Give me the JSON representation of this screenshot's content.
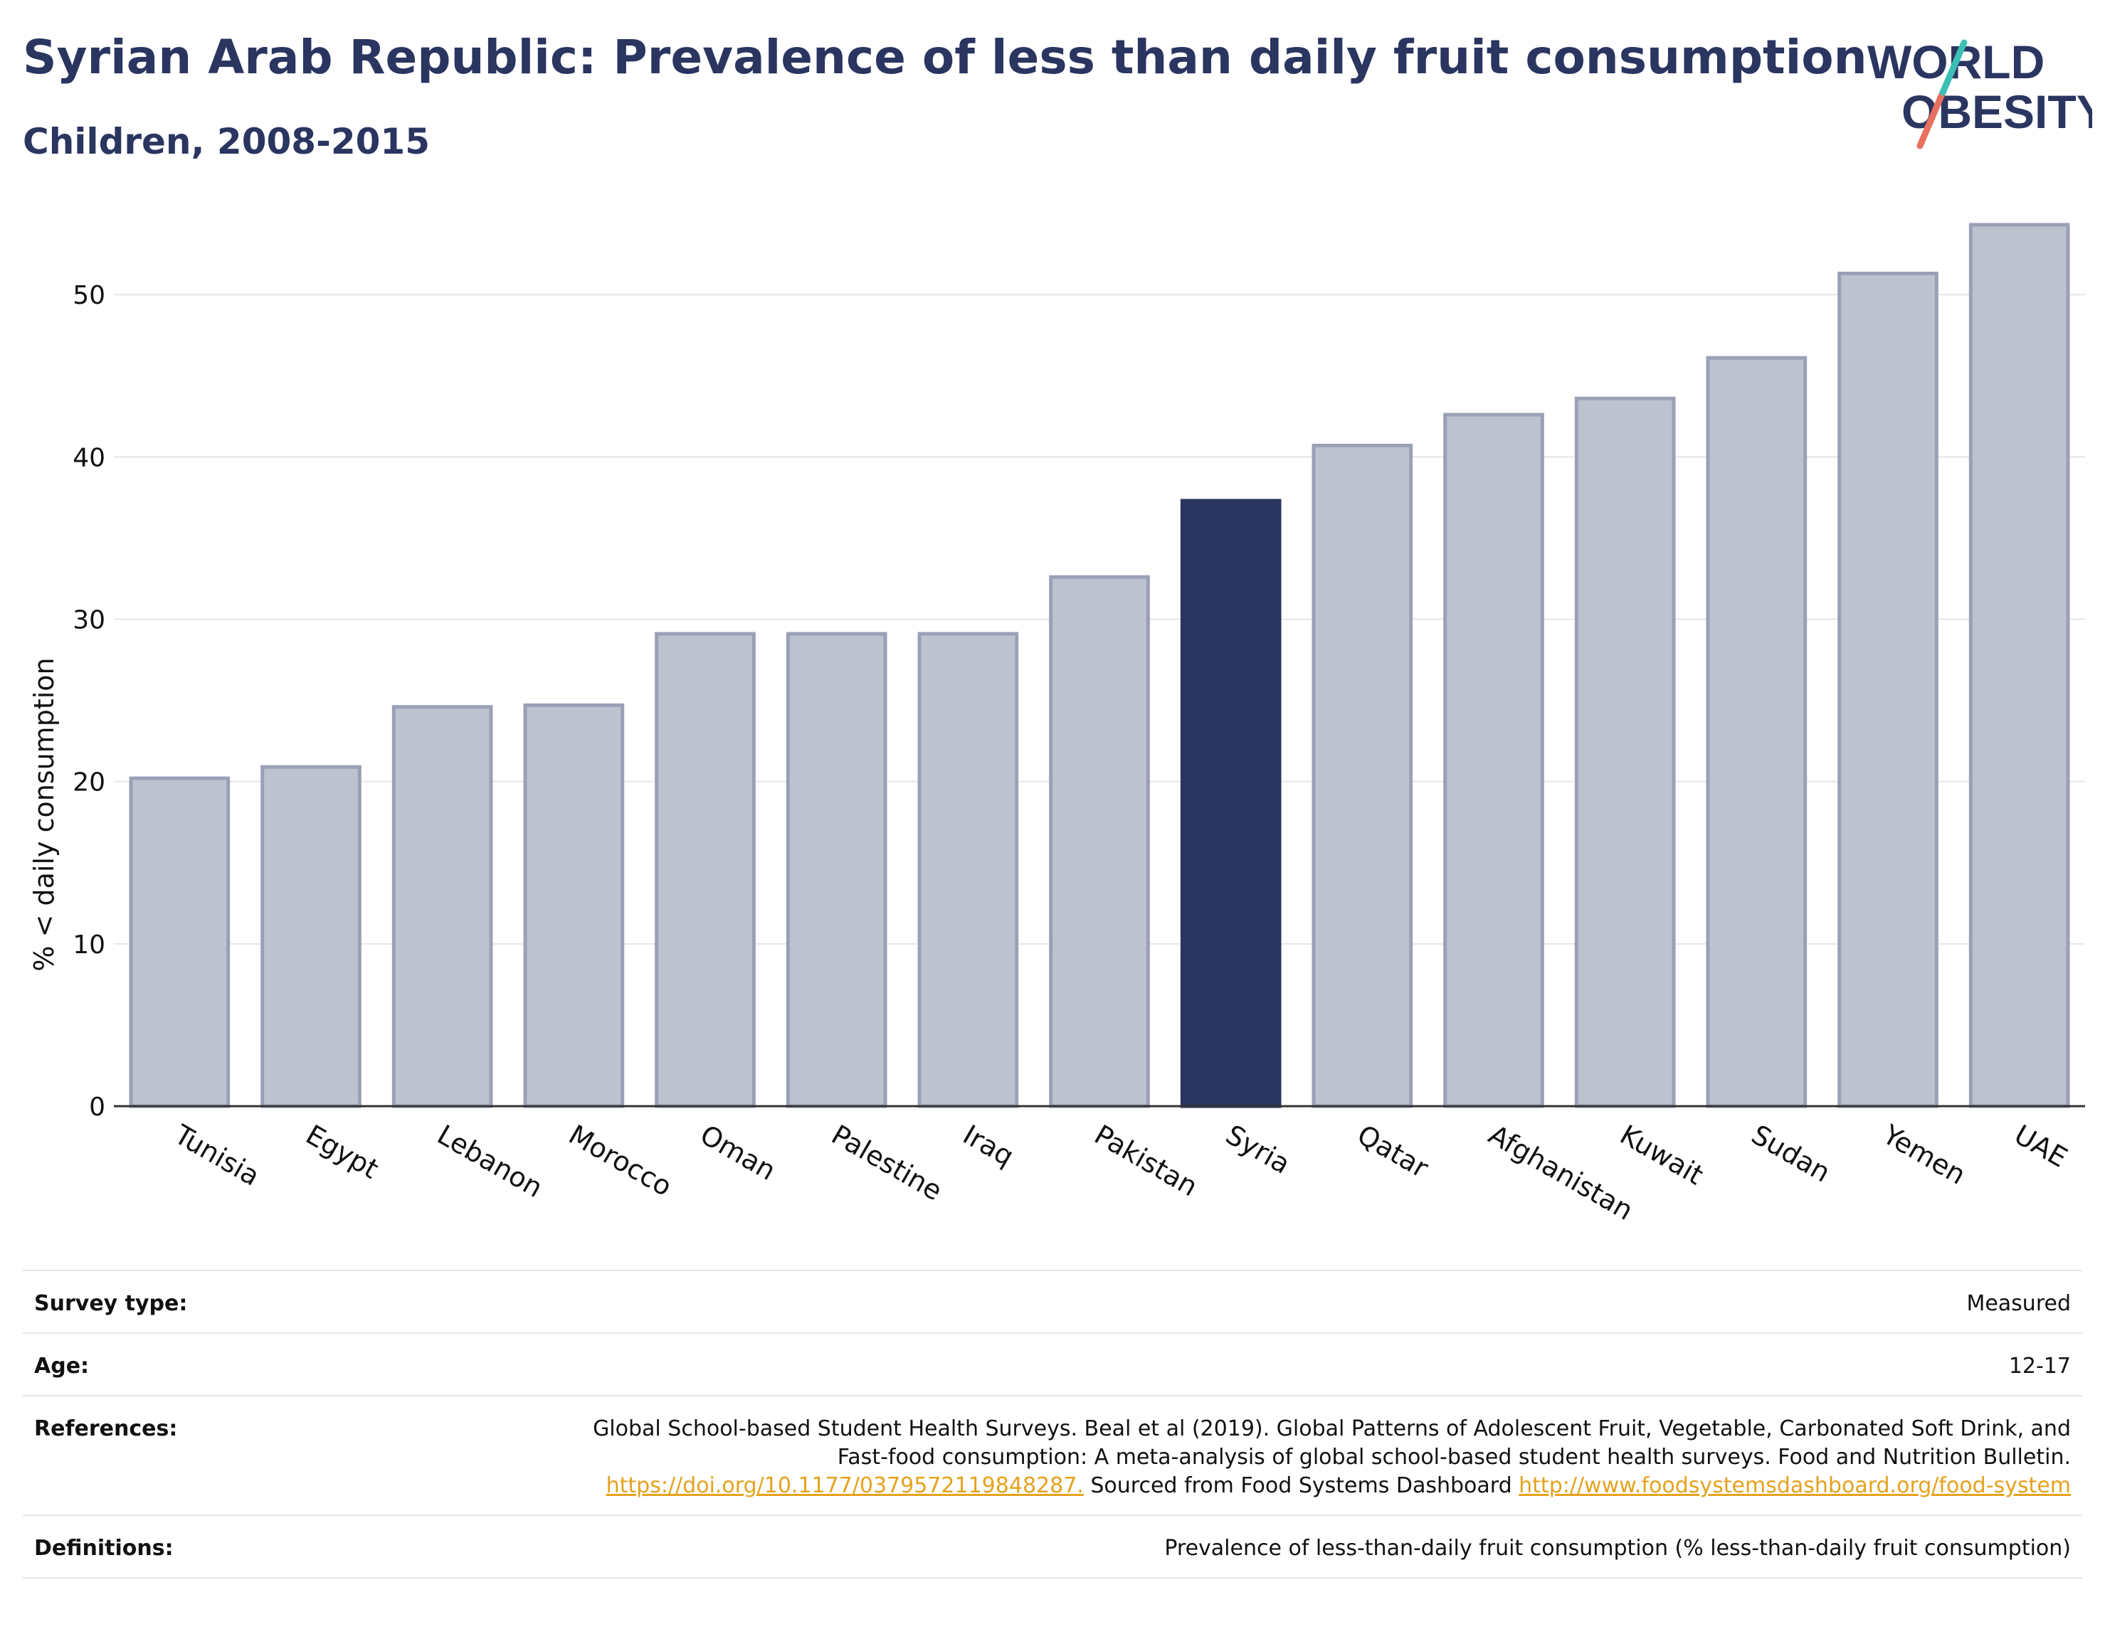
{
  "header": {
    "title": "Syrian Arab Republic: Prevalence of less than daily fruit consumption",
    "subtitle": "Children, 2008-2015"
  },
  "logo": {
    "line1": "WORLD",
    "line2": "OBESITY"
  },
  "colors": {
    "highlight": "#2a3560",
    "bar_fill": "#bec2cf",
    "bar_stroke": "#9aa0b6",
    "grid": "#e6e6e6",
    "link": "#e6a21d",
    "logo_teal": "#3cbfb4",
    "logo_coral": "#e8705f"
  },
  "chart_data": {
    "type": "bar",
    "ylabel": "% < daily consumption",
    "ylim": [
      0,
      55
    ],
    "yticks": [
      0,
      10,
      20,
      30,
      40,
      50
    ],
    "grid": true,
    "highlight": "Syria",
    "categories": [
      "Tunisia",
      "Egypt",
      "Lebanon",
      "Morocco",
      "Oman",
      "Palestine",
      "Iraq",
      "Pakistan",
      "Syria",
      "Qatar",
      "Afghanistan",
      "Kuwait",
      "Sudan",
      "Yemen",
      "UAE"
    ],
    "values": [
      20.2,
      20.9,
      24.6,
      24.7,
      29.1,
      29.1,
      29.1,
      32.6,
      37.3,
      40.7,
      42.6,
      43.6,
      46.1,
      51.3,
      54.3
    ]
  },
  "info": {
    "survey_type": {
      "label": "Survey type:",
      "value": "Measured"
    },
    "age": {
      "label": "Age:",
      "value": "12-17"
    },
    "references": {
      "label": "References:",
      "text1": "Global School-based Student Health Surveys. Beal et al (2019). Global Patterns of Adolescent Fruit, Vegetable, Carbonated Soft Drink, and Fast-food consumption: A meta-analysis of global school-based student health surveys. Food and Nutrition Bulletin. ",
      "link1": "https://doi.org/10.1177/0379572119848287.",
      "text2": " Sourced from Food Systems Dashboard ",
      "link2": "http://www.foodsystemsdashboard.org/food-system"
    },
    "definitions": {
      "label": "Definitions:",
      "value": "Prevalence of less-than-daily fruit consumption (% less-than-daily fruit consumption)"
    }
  }
}
